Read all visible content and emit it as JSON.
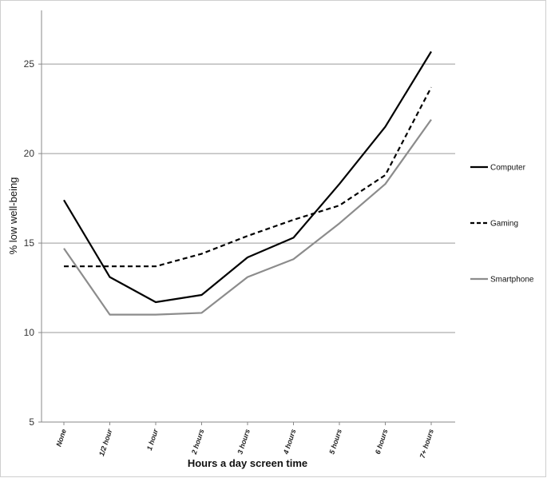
{
  "chart_data": {
    "type": "line",
    "title": "",
    "xlabel": "Hours a day screen time",
    "ylabel": "% low well-being",
    "categories": [
      "None",
      "1/2 hour",
      "1 hour",
      "2 hours",
      "3 hours",
      "4 hours",
      "5 hours",
      "6 hours",
      "7+ hours"
    ],
    "ylim": [
      5,
      28
    ],
    "yticks": [
      5,
      10,
      15,
      20,
      25
    ],
    "grid": true,
    "legend_position": "right",
    "series": [
      {
        "name": "Computer",
        "color": "#000000",
        "style": "solid",
        "values": [
          17.4,
          13.1,
          11.7,
          12.1,
          14.2,
          15.3,
          18.3,
          21.5,
          25.7
        ]
      },
      {
        "name": "Gaming",
        "color": "#000000",
        "style": "dashed",
        "values": [
          13.7,
          13.7,
          13.7,
          14.4,
          15.4,
          16.3,
          17.1,
          18.8,
          23.7
        ]
      },
      {
        "name": "Smartphone",
        "color": "#8c8c8c",
        "style": "solid",
        "values": [
          14.7,
          11.0,
          11.0,
          11.1,
          13.1,
          14.1,
          16.1,
          18.3,
          21.9
        ]
      }
    ]
  }
}
